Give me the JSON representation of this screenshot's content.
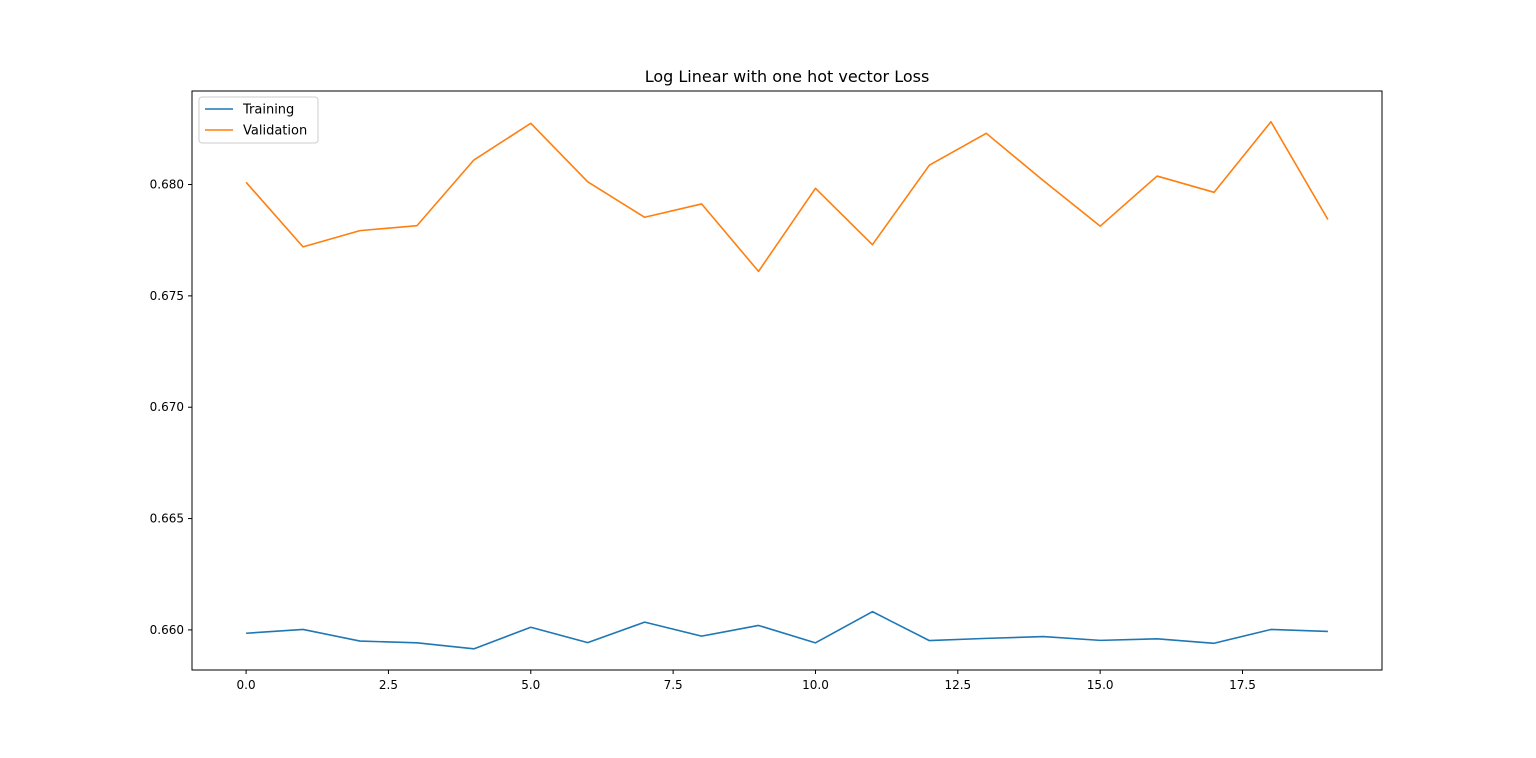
{
  "chart_data": {
    "type": "line",
    "title": "Log Linear with one hot vector Loss",
    "xlabel": "",
    "ylabel": "",
    "x": [
      0,
      1,
      2,
      3,
      4,
      5,
      6,
      7,
      8,
      9,
      10,
      11,
      12,
      13,
      14,
      15,
      16,
      17,
      18,
      19
    ],
    "xlim": [
      -0.95,
      19.95
    ],
    "ylim": [
      0.6582,
      0.6842
    ],
    "x_ticks": [
      0,
      2.5,
      5,
      7.5,
      10,
      12.5,
      15,
      17.5
    ],
    "x_tick_labels": [
      "0.0",
      "2.5",
      "5.0",
      "7.5",
      "10.0",
      "12.5",
      "15.0",
      "17.5"
    ],
    "y_ticks": [
      0.66,
      0.665,
      0.67,
      0.675,
      0.68
    ],
    "y_tick_labels": [
      "0.660",
      "0.665",
      "0.670",
      "0.675",
      "0.680"
    ],
    "grid": false,
    "legend": "upper-left",
    "series": [
      {
        "name": "Training",
        "color": "#1f77b4",
        "values": [
          0.65985,
          0.66002,
          0.6595,
          0.65942,
          0.65915,
          0.66012,
          0.65943,
          0.66035,
          0.65972,
          0.6602,
          0.65942,
          0.66082,
          0.65952,
          0.65962,
          0.6597,
          0.65953,
          0.6596,
          0.6594,
          0.66002,
          0.65993
        ]
      },
      {
        "name": "Validation",
        "color": "#ff7f0e",
        "values": [
          0.6801,
          0.6772,
          0.67793,
          0.67815,
          0.6811,
          0.68275,
          0.68012,
          0.67853,
          0.67913,
          0.6761,
          0.67983,
          0.6773,
          0.68087,
          0.6823,
          0.68018,
          0.67813,
          0.68038,
          0.67965,
          0.68282,
          0.67843
        ]
      }
    ]
  }
}
